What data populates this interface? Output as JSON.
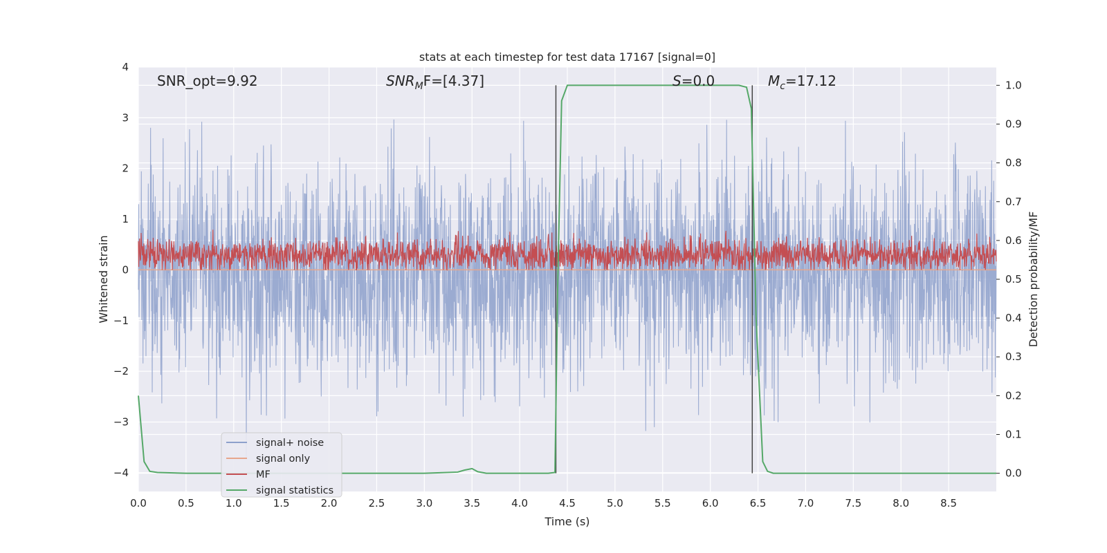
{
  "chart_data": {
    "type": "line",
    "title": "stats at each timestep for test data 17167 [signal=0]",
    "xlabel": "Time (s)",
    "ylabel": "Whitened strain",
    "ylabel_right": "Detection probability/MF",
    "xlim": [
      0,
      9
    ],
    "ylim": [
      -4.37,
      4
    ],
    "ylim_right": [
      -0.047,
      1.047
    ],
    "x_ticks": [
      "0.0",
      "0.5",
      "1.0",
      "1.5",
      "2.0",
      "2.5",
      "3.0",
      "3.5",
      "4.0",
      "4.5",
      "5.0",
      "5.5",
      "6.0",
      "6.5",
      "7.0",
      "7.5",
      "8.0",
      "8.5"
    ],
    "y_ticks": [
      "4",
      "3",
      "2",
      "1",
      "0",
      "−1",
      "−2",
      "−3",
      "−4"
    ],
    "y_ticks_right": [
      "1.0",
      "0.9",
      "0.8",
      "0.7",
      "0.6",
      "0.5",
      "0.4",
      "0.3",
      "0.2",
      "0.1",
      "0.0"
    ],
    "grid": true,
    "legend_placement": "lower-left",
    "annotations": {
      "snr_opt": "SNR_opt=9.92",
      "snr_mf_base": "SNR",
      "snr_mf_sub": "M",
      "snr_mf_rest": "F=[4.37]",
      "s_italic": "S",
      "s_rest": "=0.0",
      "mc_italic": "M",
      "mc_sub": "c",
      "mc_rest": "=17.12"
    },
    "vertical_lines_x": [
      4.38,
      6.44
    ],
    "series": [
      {
        "name": "signal+ noise",
        "color": "#8da0cb",
        "description_kind": "noise",
        "amplitude_envelope": [
          -3.7,
          3.6
        ]
      },
      {
        "name": "signal only",
        "color": "#e7a68c",
        "x": [
          0,
          9
        ],
        "y": [
          0,
          0
        ]
      },
      {
        "name": "MF",
        "color": "#c44e52",
        "description_kind": "noise",
        "range": [
          0.0,
          0.8
        ]
      },
      {
        "name": "signal statistics",
        "color": "#55a868",
        "axis": "right",
        "x": [
          0,
          0.06,
          0.12,
          0.2,
          0.5,
          1.0,
          2.0,
          3.0,
          3.35,
          3.42,
          3.5,
          3.56,
          3.65,
          4.0,
          4.3,
          4.37,
          4.4,
          4.44,
          4.5,
          5.0,
          6.0,
          6.3,
          6.38,
          6.43,
          6.48,
          6.55,
          6.6,
          6.66,
          7.0,
          8.0,
          9.0
        ],
        "y": [
          0.2,
          0.03,
          0.005,
          0.002,
          0.0,
          0.0,
          0.0,
          0.0,
          0.003,
          0.008,
          0.012,
          0.004,
          0.0,
          0.0,
          0.0,
          0.002,
          0.5,
          0.96,
          1.0,
          1.0,
          1.0,
          1.0,
          0.995,
          0.94,
          0.4,
          0.03,
          0.005,
          0.0,
          0.0,
          0.0,
          0.0
        ]
      }
    ]
  }
}
